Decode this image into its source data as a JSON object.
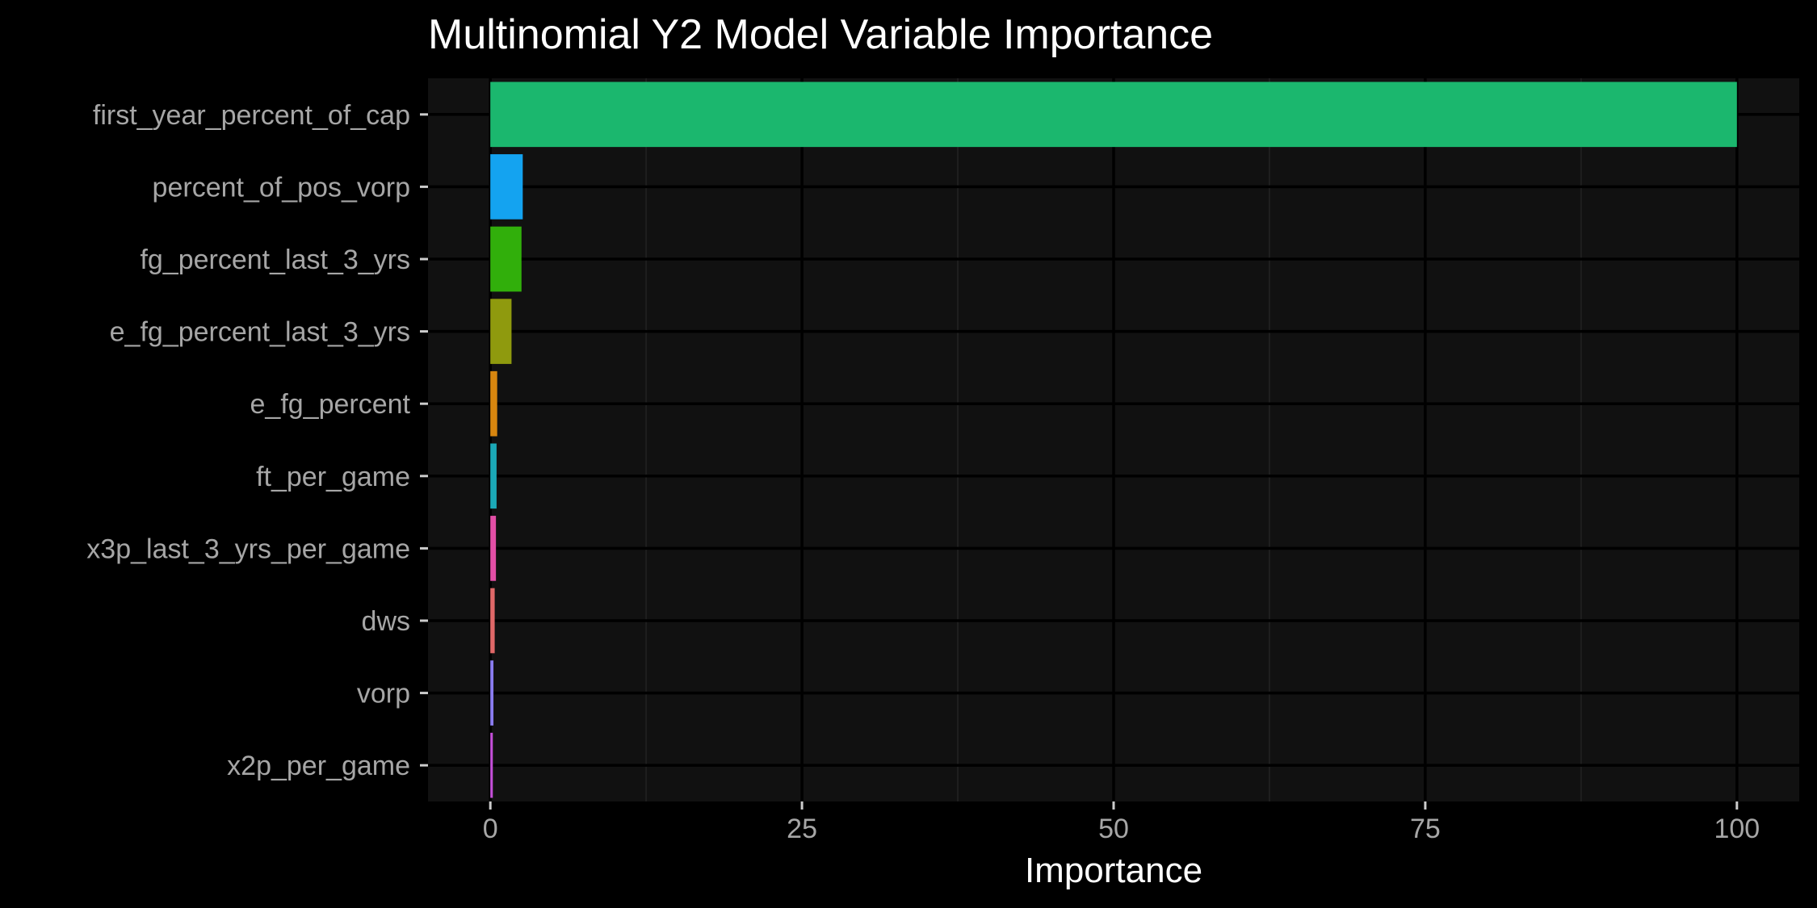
{
  "chart_data": {
    "type": "bar",
    "orientation": "horizontal",
    "title": "Multinomial Y2 Model Variable Importance",
    "xlabel": "Importance",
    "ylabel": "",
    "xlim": [
      -5,
      105
    ],
    "x_ticks": [
      0,
      25,
      50,
      75,
      100
    ],
    "x_tick_labels": [
      "0",
      "25",
      "50",
      "75",
      "100"
    ],
    "grid": true,
    "legend": "none",
    "categories": [
      "first_year_percent_of_cap",
      "percent_of_pos_vorp",
      "fg_percent_last_3_yrs",
      "e_fg_percent_last_3_yrs",
      "e_fg_percent",
      "ft_per_game",
      "x3p_last_3_yrs_per_game",
      "dws",
      "vorp",
      "x2p_per_game"
    ],
    "values": [
      100,
      2.6,
      2.5,
      1.7,
      0.55,
      0.5,
      0.45,
      0.35,
      0.25,
      0.2
    ],
    "colors": [
      "#1BB76E",
      "#14A3F0",
      "#31AF0B",
      "#8F9A0E",
      "#D8860F",
      "#1BA9B7",
      "#E34FA6",
      "#E06868",
      "#8A7CF0",
      "#C44FD8"
    ]
  },
  "theme": {
    "background": "#000000",
    "panel": "#111111",
    "grid_major": "#000000",
    "grid_minor": "#1f1f1f",
    "tick_text": "#a6a6a6",
    "title_text": "#ffffff"
  }
}
